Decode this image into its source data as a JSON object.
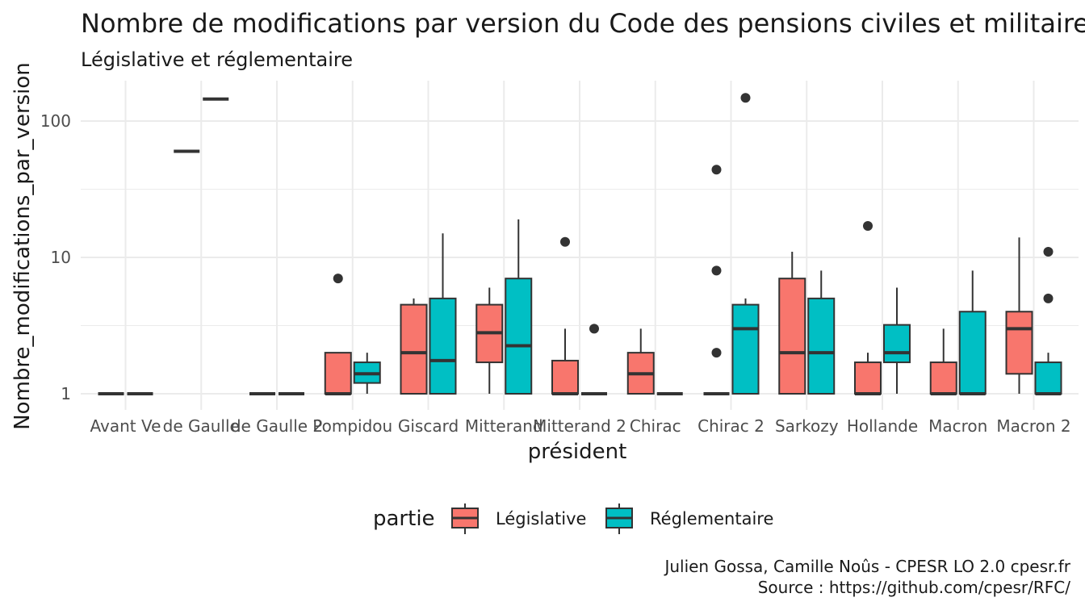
{
  "chart_data": {
    "type": "boxplot",
    "title": "Nombre de modifications par version du Code des pensions civiles et militaires",
    "subtitle": "Législative et réglementaire",
    "xlabel": "président",
    "ylabel": "Nombre_modifications_par_version",
    "y_scale": "log10",
    "ylim": [
      0.85,
      210
    ],
    "y_ticks": [
      1,
      10,
      100
    ],
    "y_tick_labels": [
      "1",
      "10",
      "100"
    ],
    "grid": true,
    "legend": {
      "title": "partie",
      "position": "bottom",
      "entries": [
        {
          "name": "Législative",
          "color": "#F8766D"
        },
        {
          "name": "Réglementaire",
          "color": "#00BFC4"
        }
      ]
    },
    "categories": [
      "Avant Ve",
      "de Gaulle",
      "de Gaulle 2",
      "Pompidou",
      "Giscard",
      "Mitterand",
      "Mitterand 2",
      "Chirac",
      "Chirac 2",
      "Sarkozy",
      "Hollande",
      "Macron",
      "Macron 2"
    ],
    "series": [
      {
        "name": "Législative",
        "color": "#F8766D",
        "boxes": [
          {
            "category": "Avant Ve",
            "min": 1,
            "q1": 1,
            "median": 1,
            "q3": 1,
            "max": 1,
            "outliers": []
          },
          {
            "category": "de Gaulle",
            "min": 60,
            "q1": 60,
            "median": 60,
            "q3": 60,
            "max": 60,
            "outliers": []
          },
          {
            "category": "de Gaulle 2",
            "min": 1,
            "q1": 1,
            "median": 1,
            "q3": 1,
            "max": 1,
            "outliers": []
          },
          {
            "category": "Pompidou",
            "min": 1,
            "q1": 1,
            "median": 1,
            "q3": 2,
            "max": 2,
            "outliers": [
              7
            ]
          },
          {
            "category": "Giscard",
            "min": 1,
            "q1": 1,
            "median": 2,
            "q3": 4.5,
            "max": 5,
            "outliers": []
          },
          {
            "category": "Mitterand",
            "min": 1,
            "q1": 1.7,
            "median": 2.8,
            "q3": 4.5,
            "max": 6,
            "outliers": []
          },
          {
            "category": "Mitterand 2",
            "min": 1,
            "q1": 1,
            "median": 1,
            "q3": 1.75,
            "max": 3,
            "outliers": [
              13
            ]
          },
          {
            "category": "Chirac",
            "min": 1,
            "q1": 1,
            "median": 1.4,
            "q3": 2,
            "max": 3,
            "outliers": []
          },
          {
            "category": "Chirac 2",
            "min": 1,
            "q1": 1,
            "median": 1,
            "q3": 1,
            "max": 1,
            "outliers": [
              2,
              8,
              44
            ]
          },
          {
            "category": "Sarkozy",
            "min": 1,
            "q1": 1,
            "median": 2,
            "q3": 7,
            "max": 11,
            "outliers": []
          },
          {
            "category": "Hollande",
            "min": 1,
            "q1": 1,
            "median": 1,
            "q3": 1.7,
            "max": 2,
            "outliers": [
              17
            ]
          },
          {
            "category": "Macron",
            "min": 1,
            "q1": 1,
            "median": 1,
            "q3": 1.7,
            "max": 3,
            "outliers": []
          },
          {
            "category": "Macron 2",
            "min": 1,
            "q1": 1.4,
            "median": 3,
            "q3": 4,
            "max": 14,
            "outliers": []
          }
        ]
      },
      {
        "name": "Réglementaire",
        "color": "#00BFC4",
        "boxes": [
          {
            "category": "Avant Ve",
            "min": 1,
            "q1": 1,
            "median": 1,
            "q3": 1,
            "max": 1,
            "outliers": []
          },
          {
            "category": "de Gaulle",
            "min": 145,
            "q1": 145,
            "median": 145,
            "q3": 145,
            "max": 145,
            "outliers": []
          },
          {
            "category": "de Gaulle 2",
            "min": 1,
            "q1": 1,
            "median": 1,
            "q3": 1,
            "max": 1,
            "outliers": []
          },
          {
            "category": "Pompidou",
            "min": 1,
            "q1": 1.2,
            "median": 1.4,
            "q3": 1.7,
            "max": 2,
            "outliers": []
          },
          {
            "category": "Giscard",
            "min": 1,
            "q1": 1,
            "median": 1.75,
            "q3": 5,
            "max": 15,
            "outliers": []
          },
          {
            "category": "Mitterand",
            "min": 1,
            "q1": 1,
            "median": 2.25,
            "q3": 7,
            "max": 19,
            "outliers": []
          },
          {
            "category": "Mitterand 2",
            "min": 1,
            "q1": 1,
            "median": 1,
            "q3": 1,
            "max": 1,
            "outliers": [
              3
            ]
          },
          {
            "category": "Chirac",
            "min": 1,
            "q1": 1,
            "median": 1,
            "q3": 1,
            "max": 1,
            "outliers": []
          },
          {
            "category": "Chirac 2",
            "min": 1,
            "q1": 1,
            "median": 3,
            "q3": 4.5,
            "max": 5,
            "outliers": [
              148
            ]
          },
          {
            "category": "Sarkozy",
            "min": 1,
            "q1": 1,
            "median": 2,
            "q3": 5,
            "max": 8,
            "outliers": []
          },
          {
            "category": "Hollande",
            "min": 1,
            "q1": 1.7,
            "median": 2,
            "q3": 3.2,
            "max": 6,
            "outliers": []
          },
          {
            "category": "Macron",
            "min": 1,
            "q1": 1,
            "median": 1,
            "q3": 4,
            "max": 8,
            "outliers": []
          },
          {
            "category": "Macron 2",
            "min": 1,
            "q1": 1,
            "median": 1,
            "q3": 1.7,
            "max": 2,
            "outliers": [
              5,
              11
            ]
          }
        ]
      }
    ],
    "caption": [
      "Julien Gossa, Camille Noûs - CPESR LO 2.0 cpesr.fr",
      "Source : https://github.com/cpesr/RFC/"
    ]
  }
}
